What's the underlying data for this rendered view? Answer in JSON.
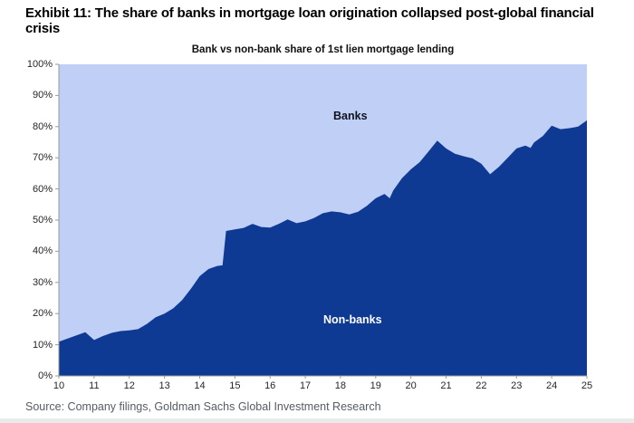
{
  "page": {
    "exhibit_title": "Exhibit 11: The share of banks in mortgage loan origination collapsed post-global financial crisis",
    "source_text": "Source: Company filings, Goldman Sachs Global Investment Research"
  },
  "chart": {
    "title": "Bank vs non-bank share of 1st lien mortgage lending",
    "banks_label": "Banks",
    "non_banks_label": "Non-banks"
  },
  "colors": {
    "banks_area": "#bfcff5",
    "non_banks_area": "#0f3a94",
    "axis": "#9a9a9a",
    "tick_text": "#262626",
    "title_text": "#000000",
    "source_text": "#565c63"
  },
  "chart_data": {
    "type": "area",
    "stacked": true,
    "title": "Bank vs non-bank share of 1st lien mortgage lending",
    "xlabel": "",
    "ylabel": "",
    "x_range": [
      2010,
      2025
    ],
    "y_range": [
      0,
      100
    ],
    "grid": false,
    "legend": "in-chart area labels",
    "x_ticks": [
      {
        "label": "10",
        "value": 2010
      },
      {
        "label": "11",
        "value": 2011
      },
      {
        "label": "12",
        "value": 2012
      },
      {
        "label": "13",
        "value": 2013
      },
      {
        "label": "14",
        "value": 2014
      },
      {
        "label": "15",
        "value": 2015
      },
      {
        "label": "16",
        "value": 2016
      },
      {
        "label": "17",
        "value": 2017
      },
      {
        "label": "18",
        "value": 2018
      },
      {
        "label": "19",
        "value": 2019
      },
      {
        "label": "20",
        "value": 2020
      },
      {
        "label": "21",
        "value": 2021
      },
      {
        "label": "22",
        "value": 2022
      },
      {
        "label": "23",
        "value": 2023
      },
      {
        "label": "24",
        "value": 2024
      },
      {
        "label": "25",
        "value": 2025
      }
    ],
    "y_ticks": [
      {
        "label": "0%",
        "value": 0
      },
      {
        "label": "10%",
        "value": 10
      },
      {
        "label": "20%",
        "value": 20
      },
      {
        "label": "30%",
        "value": 30
      },
      {
        "label": "40%",
        "value": 40
      },
      {
        "label": "50%",
        "value": 50
      },
      {
        "label": "60%",
        "value": 60
      },
      {
        "label": "70%",
        "value": 70
      },
      {
        "label": "80%",
        "value": 80
      },
      {
        "label": "90%",
        "value": 90
      },
      {
        "label": "100%",
        "value": 100
      }
    ],
    "x": [
      2010.0,
      2010.25,
      2010.5,
      2010.75,
      2011.0,
      2011.25,
      2011.5,
      2011.75,
      2012.0,
      2012.25,
      2012.5,
      2012.75,
      2013.0,
      2013.25,
      2013.5,
      2013.75,
      2014.0,
      2014.25,
      2014.5,
      2014.65,
      2014.75,
      2015.0,
      2015.25,
      2015.5,
      2015.75,
      2016.0,
      2016.25,
      2016.5,
      2016.75,
      2017.0,
      2017.25,
      2017.5,
      2017.75,
      2018.0,
      2018.25,
      2018.5,
      2018.75,
      2019.0,
      2019.25,
      2019.4,
      2019.5,
      2019.75,
      2020.0,
      2020.25,
      2020.5,
      2020.75,
      2021.0,
      2021.25,
      2021.5,
      2021.75,
      2022.0,
      2022.25,
      2022.5,
      2022.75,
      2023.0,
      2023.25,
      2023.4,
      2023.5,
      2023.75,
      2024.0,
      2024.25,
      2024.5,
      2024.75,
      2025.0
    ],
    "series": [
      {
        "name": "Non-banks",
        "color": "#0f3a94",
        "unit": "% of 1st lien mortgage lending",
        "values": [
          11,
          12,
          13,
          14,
          11.5,
          12.8,
          13.8,
          14.4,
          14.6,
          15,
          16.7,
          18.8,
          20,
          21.7,
          24.3,
          28,
          32,
          34.3,
          35.3,
          35.5,
          46.5,
          47,
          47.5,
          48.8,
          47.8,
          47.6,
          48.8,
          50.2,
          49,
          49.6,
          50.7,
          52.2,
          52.8,
          52.5,
          51.8,
          52.7,
          54.6,
          57,
          58.4,
          57,
          59.5,
          63.5,
          66.3,
          68.6,
          72,
          75.5,
          73,
          71.3,
          70.5,
          69.8,
          68.1,
          64.7,
          67.1,
          70,
          73,
          73.9,
          73.2,
          74.9,
          77,
          80.3,
          79.2,
          79.5,
          80,
          82
        ]
      },
      {
        "name": "Banks",
        "color": "#bfcff5",
        "unit": "% of 1st lien mortgage lending",
        "derived": "Banks share = 100 minus Non-banks share at every x (stacked to 100%)"
      }
    ]
  }
}
